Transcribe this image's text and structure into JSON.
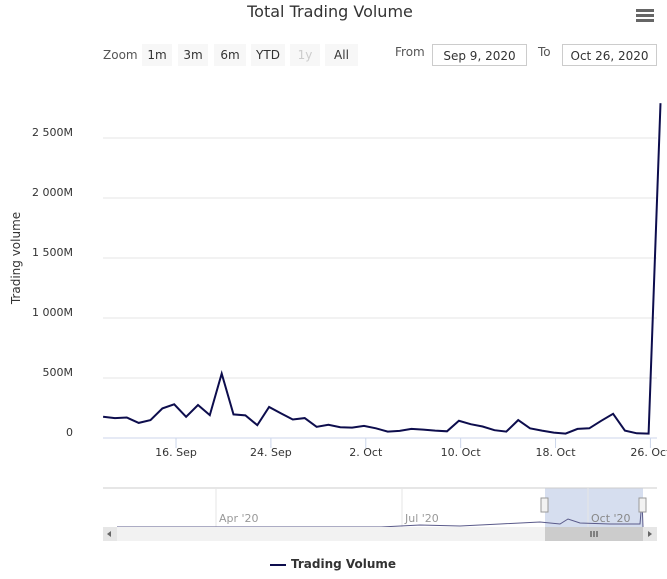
{
  "title": "Total Trading Volume",
  "range_selector": {
    "zoom_label": "Zoom",
    "buttons": [
      "1m",
      "3m",
      "6m",
      "YTD",
      "1y",
      "All"
    ],
    "disabled": "1y",
    "from_label": "From",
    "from_value": "Sep 9, 2020",
    "to_label": "To",
    "to_value": "Oct 26, 2020"
  },
  "colors": {
    "series": "#0d0d4d",
    "navigator_mask": "#ccd6eb"
  },
  "chart_data": {
    "type": "line",
    "title": "Total Trading Volume",
    "ylabel": "Trading volume",
    "xlabel": "",
    "start_date": "Sep 10, 2020",
    "x_ticks": [
      {
        "label": "16. Sep",
        "day": 7
      },
      {
        "label": "24. Sep",
        "day": 15
      },
      {
        "label": "2. Oct",
        "day": 23
      },
      {
        "label": "10. Oct",
        "day": 31
      },
      {
        "label": "18. Oct",
        "day": 39
      },
      {
        "label": "26. Oct",
        "day": 47
      }
    ],
    "y_ticks": [
      {
        "label": "0",
        "value": 0
      },
      {
        "label": "500M",
        "value": 500
      },
      {
        "label": "1 000M",
        "value": 1000
      },
      {
        "label": "1 500M",
        "value": 1500
      },
      {
        "label": "2 000M",
        "value": 2000
      },
      {
        "label": "2 500M",
        "value": 2500
      }
    ],
    "ylim": [
      0,
      2900
    ],
    "unit": "M",
    "series": [
      {
        "name": "Trading Volume",
        "values": [
          177,
          166,
          171,
          126,
          149,
          247,
          281,
          177,
          275,
          191,
          537,
          197,
          188,
          107,
          258,
          205,
          154,
          166,
          93,
          110,
          90,
          87,
          101,
          81,
          53,
          59,
          76,
          70,
          62,
          56,
          143,
          115,
          96,
          65,
          53,
          149,
          81,
          62,
          45,
          37,
          76,
          81,
          143,
          202,
          62,
          39,
          37,
          2790
        ]
      }
    ],
    "legend": "bottom-center",
    "grid": true
  },
  "navigator": {
    "labels": [
      "Apr '20",
      "Jul '20",
      "Oct '20"
    ]
  }
}
